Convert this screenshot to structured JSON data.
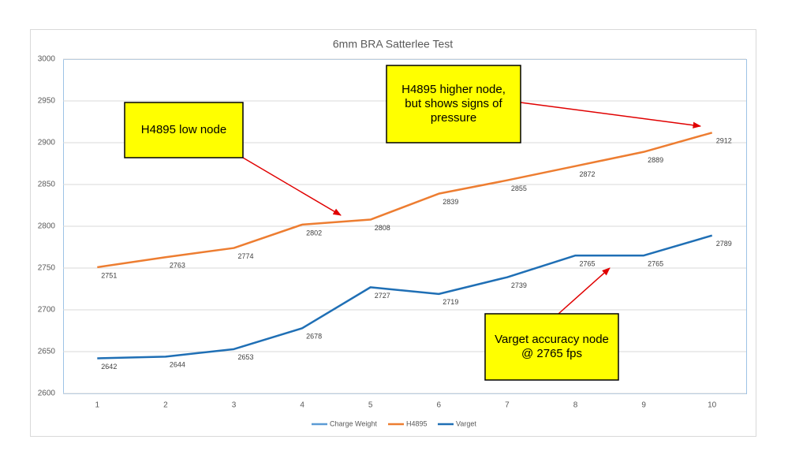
{
  "chart_data": {
    "type": "line",
    "title": "6mm BRA Satterlee Test",
    "categories": [
      "1",
      "2",
      "3",
      "4",
      "5",
      "6",
      "7",
      "8",
      "9",
      "10"
    ],
    "series": [
      {
        "name": "Charge Weight",
        "color": "#5b9bd5",
        "values": [
          null,
          null,
          null,
          null,
          null,
          null,
          null,
          null,
          null,
          null
        ]
      },
      {
        "name": "H4895",
        "color": "#ed7d31",
        "values": [
          2751,
          2763,
          2774,
          2802,
          2808,
          2839,
          2855,
          2872,
          2889,
          2912
        ]
      },
      {
        "name": "Varget",
        "color": "#1f6fb5",
        "values": [
          2642,
          2644,
          2653,
          2678,
          2727,
          2719,
          2739,
          2765,
          2765,
          2789
        ]
      }
    ],
    "ylim": [
      2600,
      3000
    ],
    "yticks": [
      2600,
      2650,
      2700,
      2750,
      2800,
      2850,
      2900,
      2950,
      3000
    ],
    "grid": true,
    "legend": "bottom",
    "annotations": [
      {
        "lines": [
          "H4895 low node"
        ]
      },
      {
        "lines": [
          "H4895 higher node,",
          "but shows signs of",
          "pressure"
        ]
      },
      {
        "lines": [
          "Varget accuracy node",
          "@ 2765 fps"
        ]
      }
    ]
  }
}
